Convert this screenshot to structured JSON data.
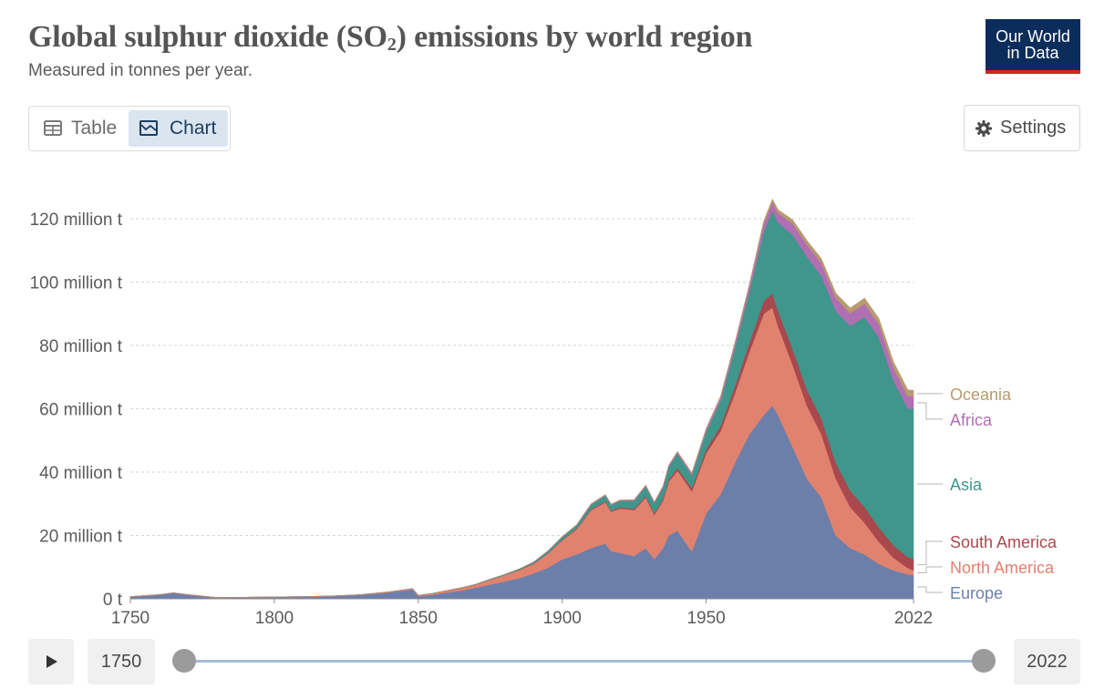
{
  "header": {
    "title_prefix": "Global sulphur dioxide (SO",
    "title_sub": "2",
    "title_suffix": ") emissions by world region",
    "subtitle": "Measured in tonnes per year.",
    "logo_line1": "Our World",
    "logo_line2": "in Data"
  },
  "tabs": {
    "table_label": "Table",
    "chart_label": "Chart",
    "active": "chart"
  },
  "settings_label": "Settings",
  "timeline": {
    "start_year": "1750",
    "end_year": "2022"
  },
  "colors": {
    "Europe": "#6c7faa",
    "North America": "#e0826e",
    "South America": "#a9484d",
    "Asia": "#3f968b",
    "Africa": "#b06fb2",
    "Oceania": "#b79b6e"
  },
  "chart_data": {
    "type": "area",
    "stacked": true,
    "title": "Global sulphur dioxide (SO₂) emissions by world region",
    "subtitle": "Measured in tonnes per year.",
    "unit": "million t",
    "ylim": [
      0,
      135
    ],
    "yticks": [
      0,
      20,
      40,
      60,
      80,
      100,
      120
    ],
    "ytick_labels": [
      "0 t",
      "20 million t",
      "40 million t",
      "60 million t",
      "80 million t",
      "100 million t",
      "120 million t"
    ],
    "xlim": [
      1750,
      2022
    ],
    "xticks": [
      1750,
      1800,
      1850,
      1900,
      1950,
      2022
    ],
    "xtick_labels": [
      "1750",
      "1800",
      "1850",
      "1900",
      "1950",
      "2022"
    ],
    "legend_order": [
      "Oceania",
      "Africa",
      "Asia",
      "South America",
      "North America",
      "Europe"
    ],
    "x": [
      1750,
      1760,
      1765,
      1770,
      1780,
      1790,
      1800,
      1810,
      1820,
      1830,
      1840,
      1848,
      1850,
      1855,
      1860,
      1865,
      1870,
      1875,
      1880,
      1885,
      1890,
      1895,
      1900,
      1905,
      1910,
      1915,
      1917,
      1920,
      1925,
      1929,
      1932,
      1935,
      1937,
      1940,
      1945,
      1950,
      1955,
      1960,
      1965,
      1970,
      1973,
      1975,
      1980,
      1985,
      1990,
      1995,
      2000,
      2005,
      2010,
      2015,
      2020,
      2022
    ],
    "series": [
      {
        "name": "Europe",
        "values": [
          0.6,
          1.2,
          1.8,
          1.2,
          0.3,
          0.4,
          0.5,
          0.6,
          0.8,
          1.2,
          2.0,
          3.0,
          0.8,
          1.3,
          2.0,
          2.6,
          3.5,
          4.5,
          5.5,
          6.5,
          8.0,
          9.8,
          12.5,
          14.0,
          16.0,
          17.5,
          15.0,
          14.5,
          13.5,
          16.0,
          12.5,
          16.0,
          20.0,
          21.5,
          15.0,
          27.0,
          33.0,
          43.0,
          52.0,
          58.0,
          61.0,
          58.0,
          48.0,
          38.0,
          32.0,
          20.0,
          16.0,
          14.0,
          11.0,
          9.0,
          7.7,
          7.5
        ]
      },
      {
        "name": "North America",
        "values": [
          0.1,
          0.1,
          0.1,
          0.1,
          0.1,
          0.1,
          0.1,
          0.1,
          0.1,
          0.1,
          0.2,
          0.2,
          0.3,
          0.4,
          0.6,
          0.8,
          1.0,
          1.5,
          2.0,
          2.5,
          3.0,
          4.5,
          6.0,
          8.0,
          12.0,
          13.0,
          12.5,
          14.0,
          14.5,
          16.0,
          14.0,
          15.0,
          17.0,
          19.0,
          19.0,
          19.0,
          20.0,
          22.0,
          26.0,
          32.0,
          31.0,
          28.0,
          26.0,
          23.0,
          20.0,
          18.0,
          13.0,
          10.0,
          7.0,
          4.0,
          2.0,
          1.5
        ]
      },
      {
        "name": "South America",
        "values": [
          0.0,
          0.0,
          0.0,
          0.0,
          0.0,
          0.0,
          0.0,
          0.0,
          0.0,
          0.0,
          0.0,
          0.0,
          0.0,
          0.0,
          0.0,
          0.0,
          0.0,
          0.0,
          0.0,
          0.1,
          0.1,
          0.1,
          0.2,
          0.2,
          0.3,
          0.3,
          0.3,
          0.4,
          0.4,
          0.5,
          0.5,
          0.6,
          0.7,
          0.8,
          1.0,
          1.2,
          1.6,
          2.2,
          3.0,
          4.0,
          4.5,
          4.8,
          5.0,
          5.0,
          5.0,
          5.0,
          5.2,
          5.0,
          4.5,
          4.0,
          3.5,
          3.5
        ]
      },
      {
        "name": "Asia",
        "values": [
          0.0,
          0.0,
          0.0,
          0.0,
          0.0,
          0.0,
          0.0,
          0.0,
          0.0,
          0.0,
          0.0,
          0.0,
          0.0,
          0.0,
          0.0,
          0.1,
          0.1,
          0.2,
          0.2,
          0.3,
          0.4,
          0.6,
          0.8,
          1.0,
          1.4,
          1.8,
          1.8,
          2.0,
          2.5,
          3.0,
          3.2,
          3.5,
          4.0,
          4.5,
          4.0,
          5.5,
          8.0,
          12.0,
          16.0,
          22.0,
          26.0,
          28.0,
          36.0,
          42.0,
          45.0,
          48.0,
          52.0,
          60.0,
          60.0,
          52.0,
          47.0,
          47.5
        ]
      },
      {
        "name": "Africa",
        "values": [
          0.0,
          0.0,
          0.0,
          0.0,
          0.0,
          0.0,
          0.0,
          0.0,
          0.0,
          0.0,
          0.0,
          0.0,
          0.0,
          0.0,
          0.0,
          0.0,
          0.0,
          0.0,
          0.0,
          0.0,
          0.1,
          0.1,
          0.1,
          0.1,
          0.2,
          0.2,
          0.2,
          0.2,
          0.3,
          0.3,
          0.3,
          0.4,
          0.4,
          0.5,
          0.6,
          0.8,
          1.0,
          1.3,
          1.8,
          2.5,
          2.8,
          3.0,
          3.5,
          3.8,
          4.0,
          4.0,
          4.0,
          4.2,
          4.2,
          4.0,
          3.8,
          3.8
        ]
      },
      {
        "name": "Oceania",
        "values": [
          0.0,
          0.0,
          0.0,
          0.0,
          0.0,
          0.0,
          0.0,
          0.0,
          0.0,
          0.0,
          0.0,
          0.0,
          0.0,
          0.0,
          0.0,
          0.0,
          0.0,
          0.0,
          0.0,
          0.0,
          0.0,
          0.0,
          0.1,
          0.1,
          0.1,
          0.1,
          0.1,
          0.1,
          0.1,
          0.1,
          0.1,
          0.1,
          0.1,
          0.2,
          0.2,
          0.3,
          0.4,
          0.5,
          0.6,
          0.8,
          0.9,
          1.0,
          1.2,
          1.3,
          1.4,
          1.5,
          1.6,
          1.7,
          1.8,
          1.9,
          2.0,
          2.0
        ]
      }
    ]
  }
}
